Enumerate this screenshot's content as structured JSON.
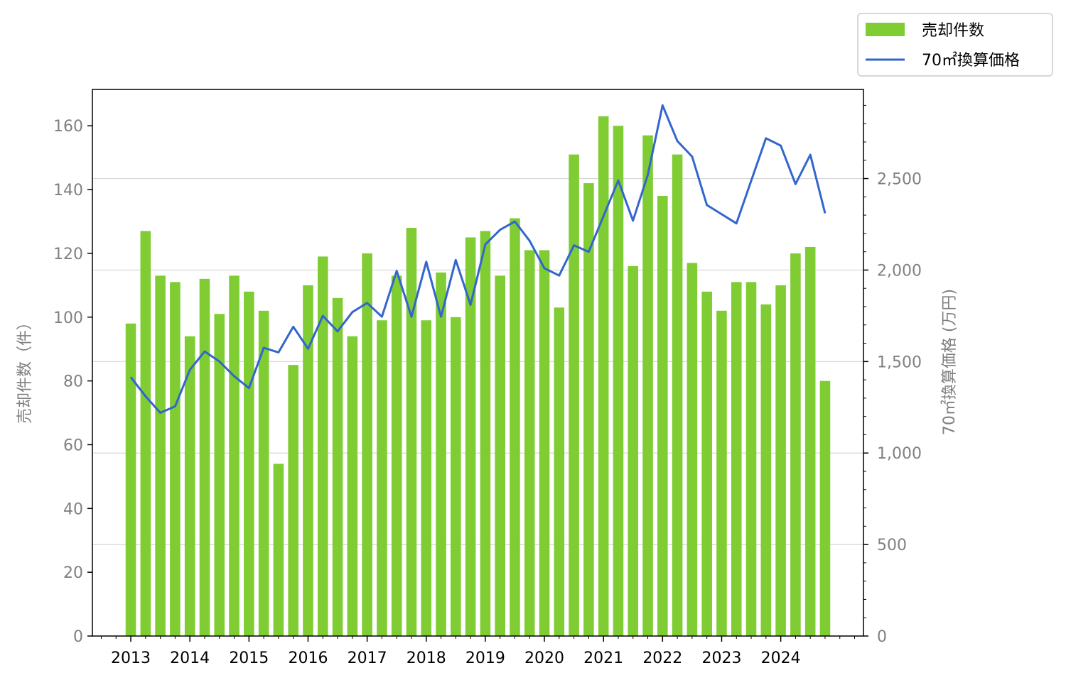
{
  "chart_data": {
    "type": "bar+line",
    "title": "",
    "xlabel": "",
    "x_tick_labels": [
      "2013",
      "2014",
      "2015",
      "2016",
      "2017",
      "2018",
      "2019",
      "2020",
      "2021",
      "2022",
      "2023",
      "2024"
    ],
    "ylabel_left": "売却件数（件）",
    "ylabel_right": "70㎡換算価格 (万円)",
    "ylim_left": [
      0,
      171.4
    ],
    "ylim_right": [
      0,
      2987
    ],
    "yticks_left": [
      0,
      20,
      40,
      60,
      80,
      100,
      120,
      140,
      160
    ],
    "yticks_right": [
      0,
      500,
      1000,
      1500,
      2000,
      2500
    ],
    "yticks_right_labels": [
      "0",
      "500",
      "1,000",
      "1,500",
      "2,000",
      "2,500"
    ],
    "grid": "horizontal lines at right-axis major ticks",
    "legend_position": "top-right, outside plot",
    "x": [
      2013.0,
      2013.25,
      2013.5,
      2013.75,
      2014.0,
      2014.25,
      2014.5,
      2014.75,
      2015.0,
      2015.25,
      2015.5,
      2015.75,
      2016.0,
      2016.25,
      2016.5,
      2016.75,
      2017.0,
      2017.25,
      2017.5,
      2017.75,
      2018.0,
      2018.25,
      2018.5,
      2018.75,
      2019.0,
      2019.25,
      2019.5,
      2019.75,
      2020.0,
      2020.25,
      2020.5,
      2020.75,
      2021.0,
      2021.25,
      2021.5,
      2021.75,
      2022.0,
      2022.25,
      2022.5,
      2022.75,
      2023.0,
      2023.25,
      2023.5,
      2023.75,
      2024.0,
      2024.25,
      2024.5,
      2024.75
    ],
    "series": [
      {
        "name": "売却件数",
        "type": "bar",
        "axis": "left",
        "color": "#7fcc33",
        "values": [
          98,
          127,
          113,
          111,
          94,
          112,
          101,
          113,
          108,
          102,
          54,
          85,
          110,
          119,
          106,
          94,
          120,
          99,
          113,
          128,
          99,
          114,
          100,
          125,
          127,
          113,
          131,
          121,
          121,
          103,
          151,
          142,
          163,
          160,
          116,
          157,
          138,
          151,
          117,
          108,
          102,
          111,
          111,
          104,
          110,
          120,
          122,
          80
        ]
      },
      {
        "name": "70㎡換算価格",
        "type": "line",
        "axis": "right",
        "color": "#3366cc",
        "x": [
          2013.0,
          2013.25,
          2013.5,
          2013.75,
          2014.0,
          2014.25,
          2014.5,
          2014.75,
          2015.0,
          2015.25,
          2015.5,
          2015.75,
          2016.0,
          2016.25,
          2016.5,
          2016.75,
          2017.0,
          2017.25,
          2017.5,
          2017.75,
          2018.0,
          2018.25,
          2018.5,
          2018.75,
          2019.0,
          2019.25,
          2019.5,
          2019.75,
          2020.0,
          2020.25,
          2020.5,
          2020.75,
          2021.0,
          2021.25,
          2021.5,
          2021.75,
          2022.0,
          2022.25,
          2022.5,
          2022.75,
          2023.25,
          2023.75,
          2024.0,
          2024.25,
          2024.5,
          2024.75
        ],
        "values": [
          1415,
          1310,
          1220,
          1255,
          1455,
          1555,
          1500,
          1420,
          1355,
          1575,
          1550,
          1690,
          1570,
          1750,
          1665,
          1770,
          1820,
          1745,
          1995,
          1745,
          2045,
          1745,
          2055,
          1810,
          2140,
          2220,
          2265,
          2160,
          2010,
          1970,
          2135,
          2100,
          2295,
          2490,
          2270,
          2520,
          2900,
          2705,
          2620,
          2355,
          2255,
          2720,
          2680,
          2470,
          2630,
          2310
        ]
      }
    ]
  }
}
